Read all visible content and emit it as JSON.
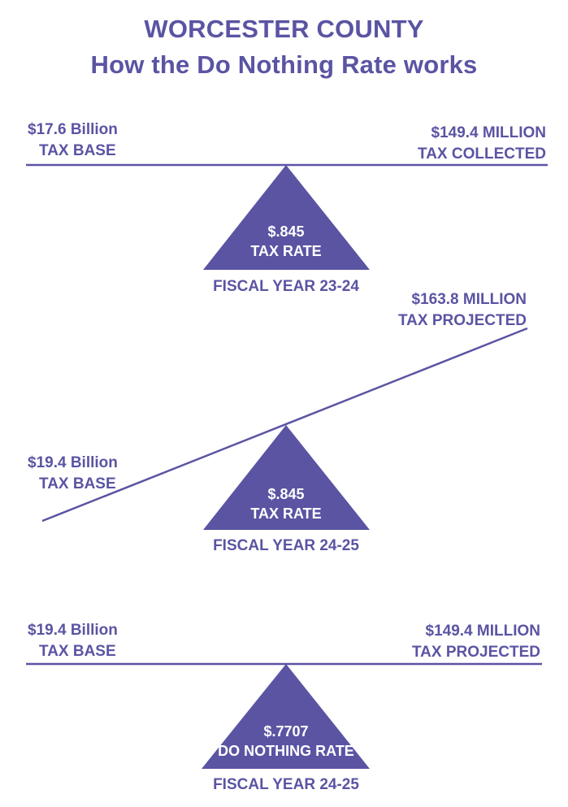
{
  "colors": {
    "ink": "#5a54a3",
    "background": "#ffffff"
  },
  "header": {
    "title": "WORCESTER COUNTY",
    "subtitle": "How the Do Nothing Rate works"
  },
  "panels": [
    {
      "left_value": "$17.6 Billion",
      "left_label": "TAX BASE",
      "right_value": "$149.4 MILLION",
      "right_label": "TAX COLLECTED",
      "rate_value": "$.845",
      "rate_label": "TAX RATE",
      "fiscal_year": "FISCAL YEAR 23-24"
    },
    {
      "left_value": "$19.4 Billion",
      "left_label": "TAX BASE",
      "right_value": "$163.8 MILLION",
      "right_label": "TAX PROJECTED",
      "rate_value": "$.845",
      "rate_label": "TAX RATE",
      "fiscal_year": "FISCAL YEAR 24-25"
    },
    {
      "left_value": "$19.4 Billion",
      "left_label": "TAX BASE",
      "right_value": "$149.4 MILLION",
      "right_label": "TAX PROJECTED",
      "rate_value": "$.7707",
      "rate_label": "DO NOTHING RATE",
      "fiscal_year": "FISCAL YEAR 24-25"
    }
  ]
}
